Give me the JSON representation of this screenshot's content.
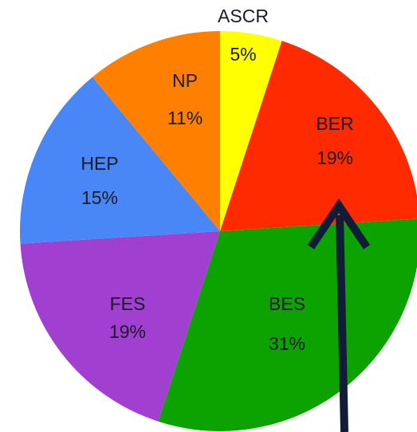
{
  "chart_data": {
    "type": "pie",
    "categories": [
      "ASCR",
      "BER",
      "BES",
      "FES",
      "HEP",
      "NP"
    ],
    "values": [
      5,
      19,
      31,
      19,
      15,
      11
    ],
    "value_labels": [
      "5%",
      "19%",
      "31%",
      "19%",
      "15%",
      "11%"
    ],
    "colors": [
      "#ffff00",
      "#ff2a00",
      "#0ca300",
      "#a03fd0",
      "#4a87f6",
      "#ff8000"
    ]
  }
}
